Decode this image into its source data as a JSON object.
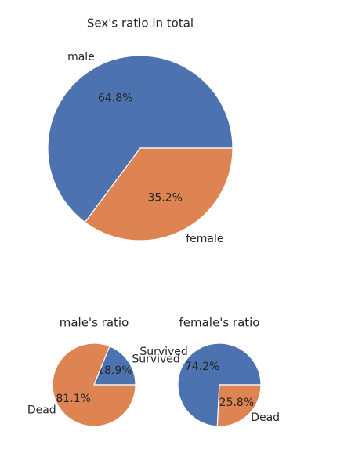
{
  "chart_data": [
    {
      "type": "pie",
      "title": "Sex's ratio in total",
      "categories": [
        "male",
        "female"
      ],
      "values": [
        64.8,
        35.2
      ],
      "value_labels": [
        "64.8%",
        "35.2%"
      ],
      "colors": [
        "#4c72b0",
        "#dd8452"
      ]
    },
    {
      "type": "pie",
      "title": "male's ratio",
      "categories": [
        "Survived",
        "Dead"
      ],
      "values": [
        18.9,
        81.1
      ],
      "value_labels": [
        "18.9%",
        "81.1%"
      ],
      "colors": [
        "#4c72b0",
        "#dd8452"
      ]
    },
    {
      "type": "pie",
      "title": "female's ratio",
      "categories": [
        "Survived",
        "Dead"
      ],
      "values": [
        74.2,
        25.8
      ],
      "value_labels": [
        "74.2%",
        "25.8%"
      ],
      "colors": [
        "#4c72b0",
        "#dd8452"
      ]
    }
  ]
}
